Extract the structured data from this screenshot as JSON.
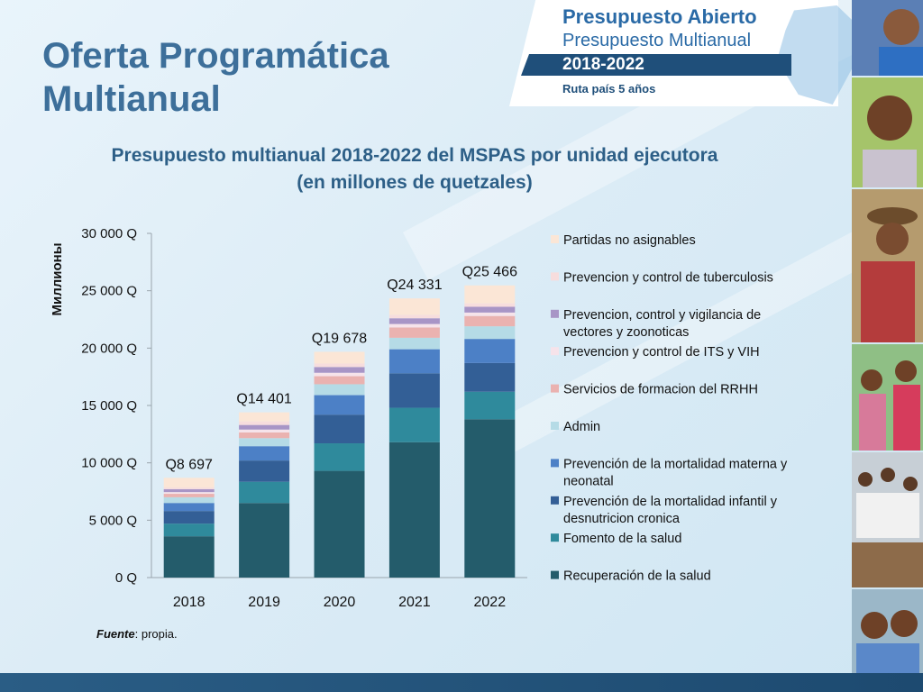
{
  "slide": {
    "title_line1": "Oferta Programática",
    "title_line2": "Multianual"
  },
  "banner": {
    "title": "Presupuesto Abierto",
    "subtitle": "Presupuesto Multianual",
    "years": "2018-2022",
    "tagline": "Ruta país 5 años"
  },
  "source": {
    "label": "Fuente",
    "text": ": propia."
  },
  "colors": {
    "title": "#3d6f9a",
    "chart_title": "#2d5f87",
    "footer": "#1f4f7a"
  },
  "chart_data": {
    "type": "bar",
    "stacked": true,
    "title": "Presupuesto multianual 2018-2022 del MSPAS por unidad ejecutora",
    "subtitle": "(en millones de quetzales)",
    "xlabel": "",
    "ylabel": "Миллионы",
    "categories": [
      "2018",
      "2019",
      "2020",
      "2021",
      "2022"
    ],
    "ylim": [
      0,
      30000
    ],
    "yticks": [
      0,
      5000,
      10000,
      15000,
      20000,
      25000,
      30000
    ],
    "ytick_labels": [
      "0 Q",
      "5 000 Q",
      "10 000 Q",
      "15 000 Q",
      "20 000 Q",
      "25 000 Q",
      "30 000 Q"
    ],
    "totals_labels": [
      "Q8 697",
      "Q14 401",
      "Q19 678",
      "Q24 331",
      "Q25 466"
    ],
    "totals": [
      8697,
      14401,
      19678,
      24331,
      25466
    ],
    "legend_position": "right",
    "series": [
      {
        "name": "Recuperación de la salud",
        "color": "#245c6b",
        "values": [
          3600,
          6500,
          9300,
          11800,
          13800
        ]
      },
      {
        "name": "Fomento de la salud",
        "color": "#2f8a9c",
        "values": [
          1100,
          1850,
          2400,
          3000,
          2400
        ]
      },
      {
        "name": "Prevención de la mortalidad infantil y desnutricion cronica",
        "color": "#335f96",
        "values": [
          1100,
          1850,
          2500,
          3000,
          2500
        ]
      },
      {
        "name": "Prevención de la mortalidad materna y neonatal",
        "color": "#4c80c6",
        "values": [
          700,
          1250,
          1700,
          2100,
          2100
        ]
      },
      {
        "name": "Admin",
        "color": "#b5dbe6",
        "values": [
          500,
          700,
          950,
          1000,
          1100
        ]
      },
      {
        "name": "Servicios de formacion del RRHH",
        "color": "#eab2b0",
        "values": [
          300,
          500,
          700,
          900,
          900
        ]
      },
      {
        "name": "Prevencion y control de ITS y VIH",
        "color": "#f6e3ea",
        "values": [
          150,
          250,
          300,
          300,
          300
        ]
      },
      {
        "name": "Prevencion, control y vigilancia de vectores y zoonoticas",
        "color": "#a895c6",
        "values": [
          250,
          400,
          500,
          500,
          500
        ]
      },
      {
        "name": "Prevencion y control de tuberculosis",
        "color": "#f7dddd",
        "values": [
          150,
          300,
          300,
          300,
          300
        ]
      },
      {
        "name": "Partidas no asignables",
        "color": "#fbe6d6",
        "values": [
          847,
          801,
          1028,
          1431,
          1566
        ]
      }
    ]
  }
}
